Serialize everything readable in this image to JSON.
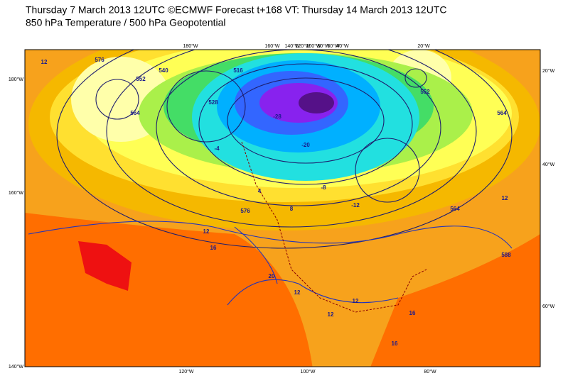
{
  "header": {
    "line1": "Thursday 7 March 2013 12UTC ©ECMWF Forecast t+168 VT: Thursday 14 March 2013 12UTC",
    "line2": "850 hPa Temperature / 500 hPa Geopotential"
  },
  "map": {
    "top_lon_labels": [
      "180°W",
      "160°W",
      "140°W",
      "120°W",
      "100°W",
      "80°W",
      "60°W",
      "40°W",
      "20°W"
    ],
    "left_lat_labels": [
      "180°W",
      "160°W",
      "140°W"
    ],
    "right_labels": [
      "20°W",
      "40°W",
      "60°W"
    ],
    "bottom_labels": [
      "120°W",
      "100°W",
      "80°W"
    ],
    "contour_labels": [
      "12",
      "576",
      "552",
      "564",
      "540",
      "528",
      "516",
      "4",
      "8",
      "-4",
      "-8",
      "-12",
      "-20",
      "-28",
      "12",
      "16",
      "20",
      "12",
      "588",
      "564",
      "552",
      "576",
      "12",
      "16",
      "16",
      "12",
      "564",
      "12"
    ]
  }
}
